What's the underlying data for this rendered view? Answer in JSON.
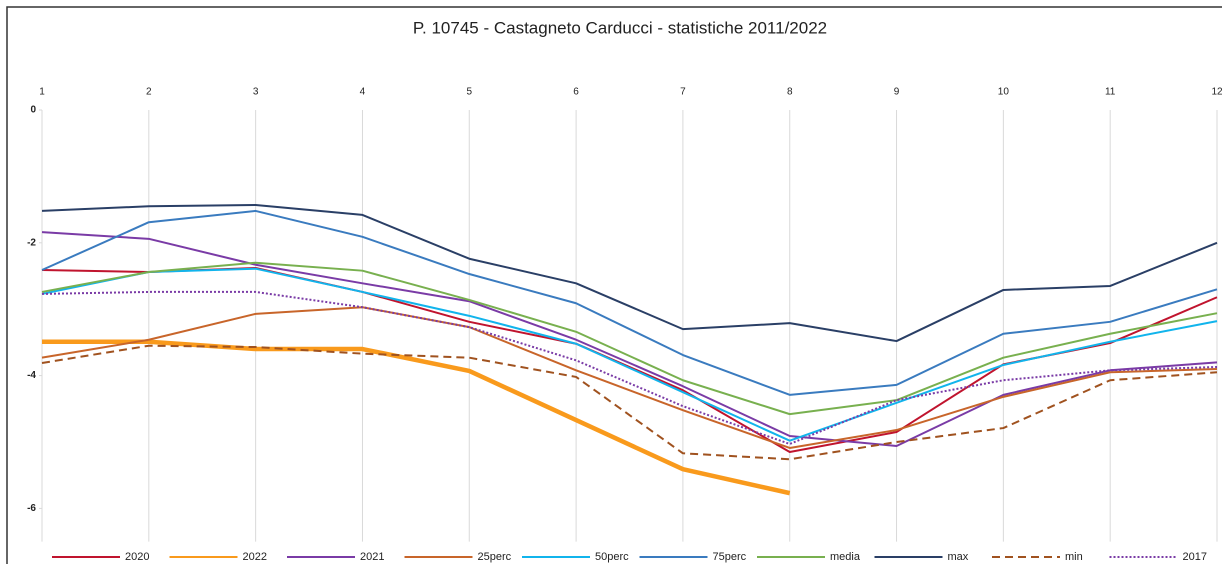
{
  "chart_data": {
    "type": "line",
    "title": "P. 10745 - Castagneto Carducci - statistiche 2011/2022",
    "x": [
      1,
      2,
      3,
      4,
      5,
      6,
      7,
      8,
      9,
      10,
      11,
      12
    ],
    "xlim": [
      1,
      12
    ],
    "xticks": [
      1,
      2,
      3,
      4,
      5,
      6,
      7,
      8,
      9,
      10,
      11,
      12
    ],
    "ylim": [
      -6.5,
      0
    ],
    "yticks": [
      0,
      -2,
      -4,
      -6
    ],
    "grid": "x",
    "legend": "bottom",
    "series": [
      {
        "name": "2020",
        "color": "#c0142e",
        "values": [
          -2.41,
          -2.44,
          -2.38,
          -2.74,
          -3.19,
          -3.52,
          -4.22,
          -5.15,
          -4.85,
          -3.83,
          -3.51,
          -2.82
        ]
      },
      {
        "name": "2022",
        "color": "#f99a1c",
        "width": 4.5,
        "values": [
          -3.49,
          -3.49,
          -3.6,
          -3.6,
          -3.93,
          -4.67,
          -5.41,
          -5.77,
          null,
          null,
          null,
          null
        ]
      },
      {
        "name": "2021",
        "color": "#7a3ba6",
        "values": [
          -1.84,
          -1.94,
          -2.33,
          -2.61,
          -2.88,
          -3.46,
          -4.16,
          -4.91,
          -5.06,
          -4.29,
          -3.92,
          -3.8
        ]
      },
      {
        "name": "25perc",
        "color": "#c8652a",
        "values": [
          -3.73,
          -3.46,
          -3.07,
          -2.97,
          -3.27,
          -3.92,
          -4.52,
          -5.09,
          -4.82,
          -4.32,
          -3.95,
          -3.9
        ]
      },
      {
        "name": "50perc",
        "color": "#11b4ec",
        "values": [
          -2.77,
          -2.44,
          -2.39,
          -2.74,
          -3.1,
          -3.52,
          -4.25,
          -4.98,
          -4.41,
          -3.84,
          -3.49,
          -3.18
        ]
      },
      {
        "name": "75perc",
        "color": "#3a7bbf",
        "values": [
          -2.41,
          -1.69,
          -1.52,
          -1.91,
          -2.47,
          -2.91,
          -3.69,
          -4.29,
          -4.14,
          -3.37,
          -3.19,
          -2.7
        ]
      },
      {
        "name": "media",
        "color": "#78b04f",
        "values": [
          -2.74,
          -2.44,
          -2.3,
          -2.42,
          -2.86,
          -3.34,
          -4.07,
          -4.58,
          -4.37,
          -3.73,
          -3.37,
          -3.06
        ]
      },
      {
        "name": "max",
        "color": "#2a3f66",
        "values": [
          -1.52,
          -1.45,
          -1.43,
          -1.58,
          -2.24,
          -2.61,
          -3.3,
          -3.21,
          -3.48,
          -2.71,
          -2.65,
          -2.0
        ]
      },
      {
        "name": "min",
        "color": "#a0521f",
        "dash": "dashed",
        "values": [
          -3.81,
          -3.55,
          -3.57,
          -3.67,
          -3.73,
          -4.02,
          -5.17,
          -5.26,
          -5.0,
          -4.79,
          -4.07,
          -3.95
        ]
      },
      {
        "name": "2017",
        "color": "#7a3ba6",
        "dash": "dotted",
        "values": [
          -2.77,
          -2.74,
          -2.74,
          -2.97,
          -3.27,
          -3.77,
          -4.46,
          -5.03,
          -4.37,
          -4.07,
          -3.92,
          -3.87
        ]
      }
    ]
  }
}
